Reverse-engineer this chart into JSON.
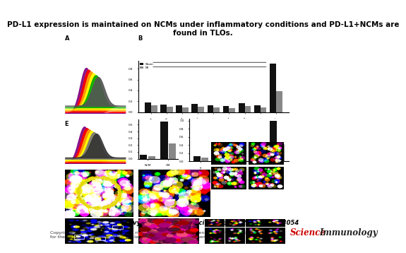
{
  "title": "PD-L1 expression is maintained on NCMs under inflammatory conditions and PD-L1+NCMs are\nfound in TLOs.",
  "citation": "Mariaelvy Bianchini et al. Sci. Immunol. 2019;4:eaar3054",
  "copyright": "Copyright © 2019 The Authors, some rights reserved; exclusive licensee American Association\nfor the Advancement of Science. No claim to original U.S. Government Works.",
  "journal": "Science",
  "journal_sub": "Immunology",
  "background_color": "#ffffff",
  "title_fontsize": 7.5,
  "citation_fontsize": 6.0,
  "copyright_fontsize": 4.5
}
